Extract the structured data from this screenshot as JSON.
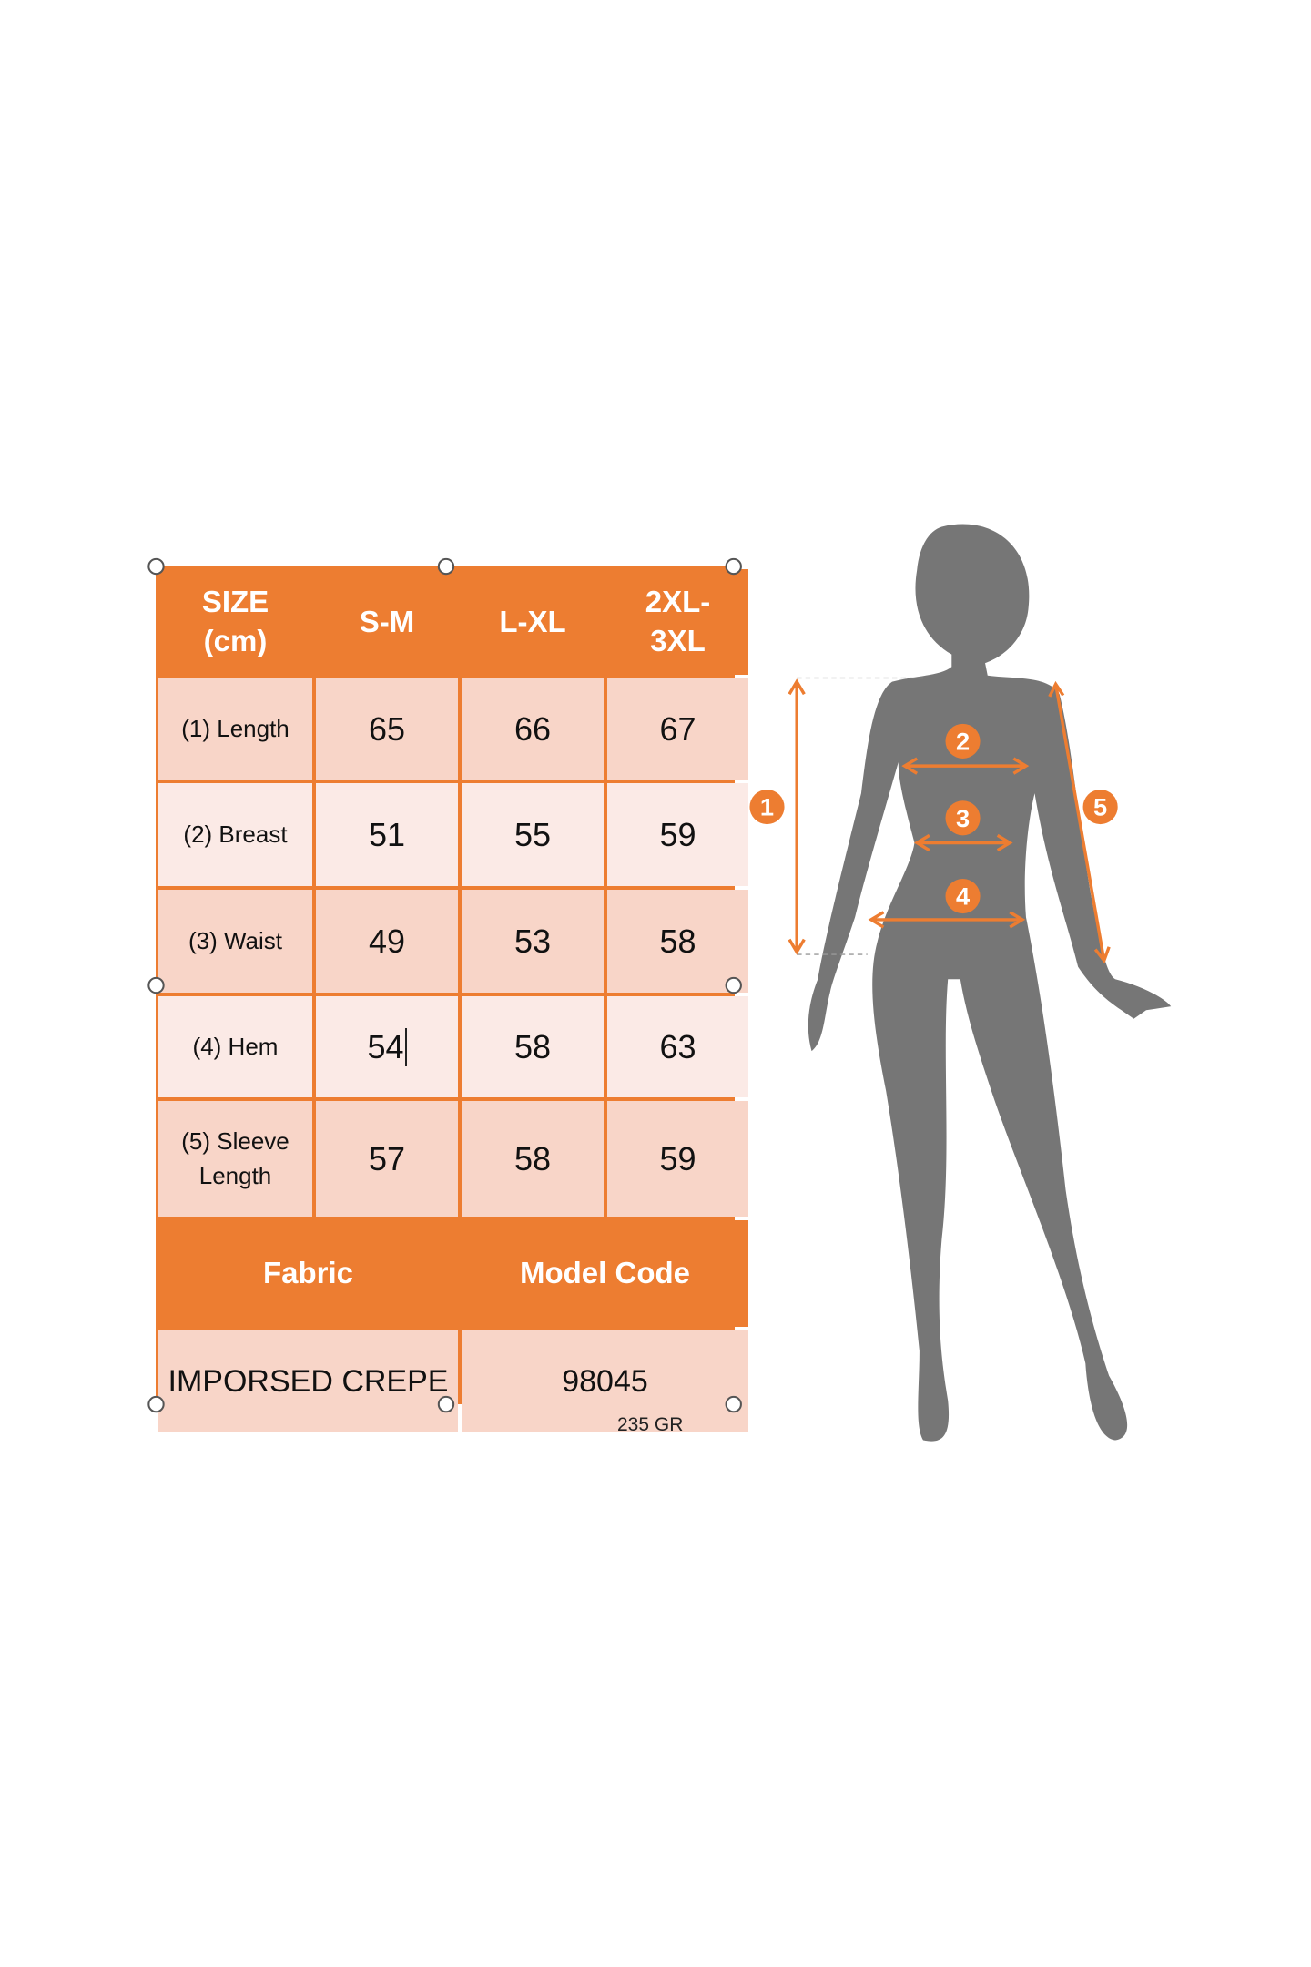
{
  "table": {
    "headers": [
      "SIZE\n(cm)",
      "S-M",
      "L-XL",
      "2XL-\n3XL"
    ],
    "rows": [
      {
        "label": "(1) Length",
        "values": [
          "65",
          "66",
          "67"
        ]
      },
      {
        "label": "(2) Breast",
        "values": [
          "51",
          "55",
          "59"
        ]
      },
      {
        "label": "(3) Waist",
        "values": [
          "49",
          "53",
          "58"
        ]
      },
      {
        "label": "(4) Hem",
        "values": [
          "54",
          "58",
          "63"
        ]
      },
      {
        "label": "(5) Sleeve\nLength",
        "values": [
          "57",
          "58",
          "59"
        ]
      }
    ],
    "footer_headers": [
      "Fabric",
      "Model Code"
    ],
    "footer_values": [
      "IMPORSED CREPE",
      "98045"
    ]
  },
  "weight": "235 GR",
  "figure": {
    "markers": [
      "1",
      "2",
      "3",
      "4",
      "5"
    ],
    "accent_color": "#ED7D31",
    "silhouette_color": "#767676"
  },
  "colors": {
    "header": "#ED7D31",
    "row_dark": "#F8D5C8",
    "row_light": "#FBEAE6"
  }
}
